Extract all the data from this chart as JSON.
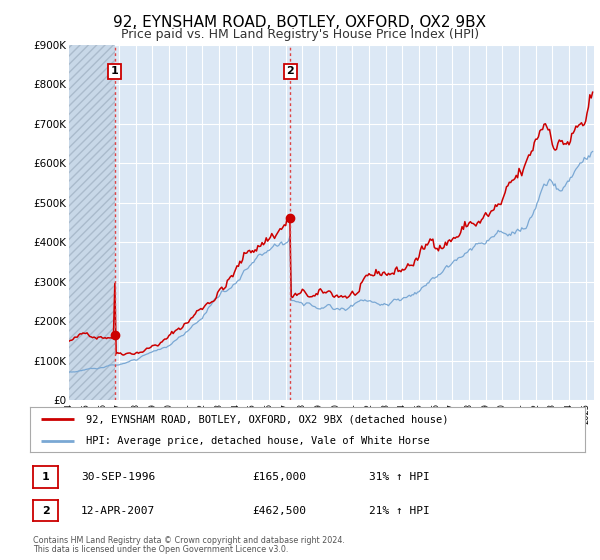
{
  "title": "92, EYNSHAM ROAD, BOTLEY, OXFORD, OX2 9BX",
  "subtitle": "Price paid vs. HM Land Registry's House Price Index (HPI)",
  "xmin": 1994.0,
  "xmax": 2025.5,
  "ymin": 0,
  "ymax": 900000,
  "yticks": [
    0,
    100000,
    200000,
    300000,
    400000,
    500000,
    600000,
    700000,
    800000,
    900000
  ],
  "ytick_labels": [
    "£0",
    "£100K",
    "£200K",
    "£300K",
    "£400K",
    "£500K",
    "£600K",
    "£700K",
    "£800K",
    "£900K"
  ],
  "xticks": [
    1994,
    1995,
    1996,
    1997,
    1998,
    1999,
    2000,
    2001,
    2002,
    2003,
    2004,
    2005,
    2006,
    2007,
    2008,
    2009,
    2010,
    2011,
    2012,
    2013,
    2014,
    2015,
    2016,
    2017,
    2018,
    2019,
    2020,
    2021,
    2022,
    2023,
    2024,
    2025
  ],
  "red_line_color": "#cc0000",
  "blue_line_color": "#7aa8d4",
  "vline_color": "#dd4444",
  "marker1_x": 1996.75,
  "marker1_y": 165000,
  "marker2_x": 2007.28,
  "marker2_y": 462500,
  "vline1_x": 1996.75,
  "vline2_x": 2007.28,
  "legend_red_label": "92, EYNSHAM ROAD, BOTLEY, OXFORD, OX2 9BX (detached house)",
  "legend_blue_label": "HPI: Average price, detached house, Vale of White Horse",
  "table_row1": [
    "1",
    "30-SEP-1996",
    "£165,000",
    "31% ↑ HPI"
  ],
  "table_row2": [
    "2",
    "12-APR-2007",
    "£462,500",
    "21% ↑ HPI"
  ],
  "footer1": "Contains HM Land Registry data © Crown copyright and database right 2024.",
  "footer2": "This data is licensed under the Open Government Licence v3.0.",
  "bg_color": "#ffffff",
  "plot_bg_color": "#dce8f5",
  "hatch_bg_color": "#c8d8e8",
  "grid_color": "#ffffff",
  "title_fontsize": 11,
  "subtitle_fontsize": 9
}
